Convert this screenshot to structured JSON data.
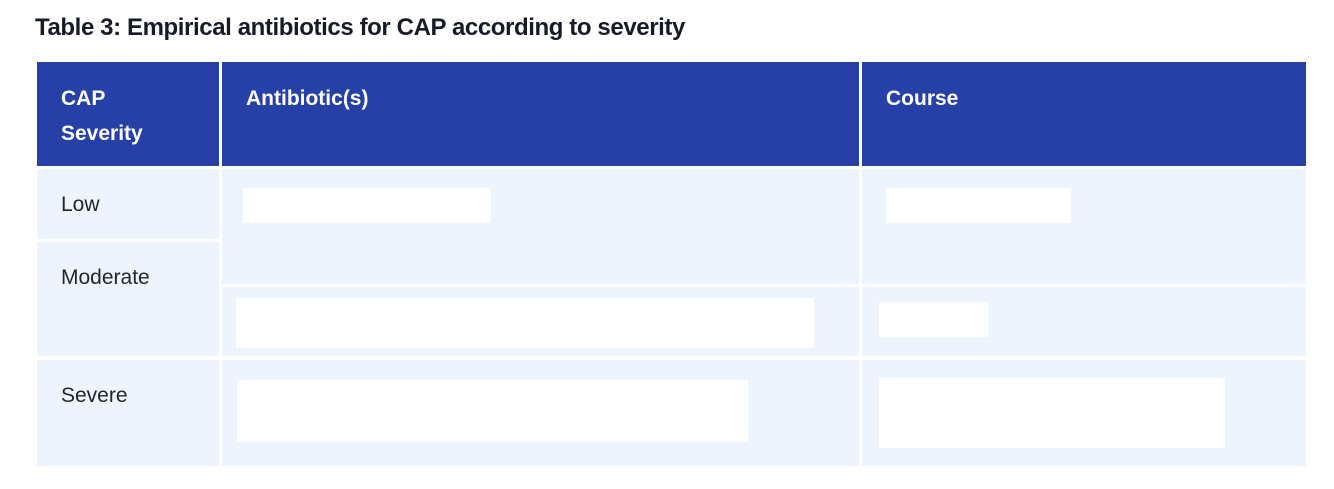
{
  "table": {
    "title": "Table 3: Empirical antibiotics for CAP according to severity",
    "columns": {
      "severity_line1": "CAP",
      "severity_line2": "Severity",
      "antibiotics": "Antibiotic(s)",
      "course": "Course"
    },
    "rows": {
      "low": "Low",
      "moderate": "Moderate",
      "severe": "Severe"
    },
    "colors": {
      "header_bg": "#2740a7",
      "row_bg": "#edf4fd",
      "redaction": "#ffffff"
    }
  }
}
